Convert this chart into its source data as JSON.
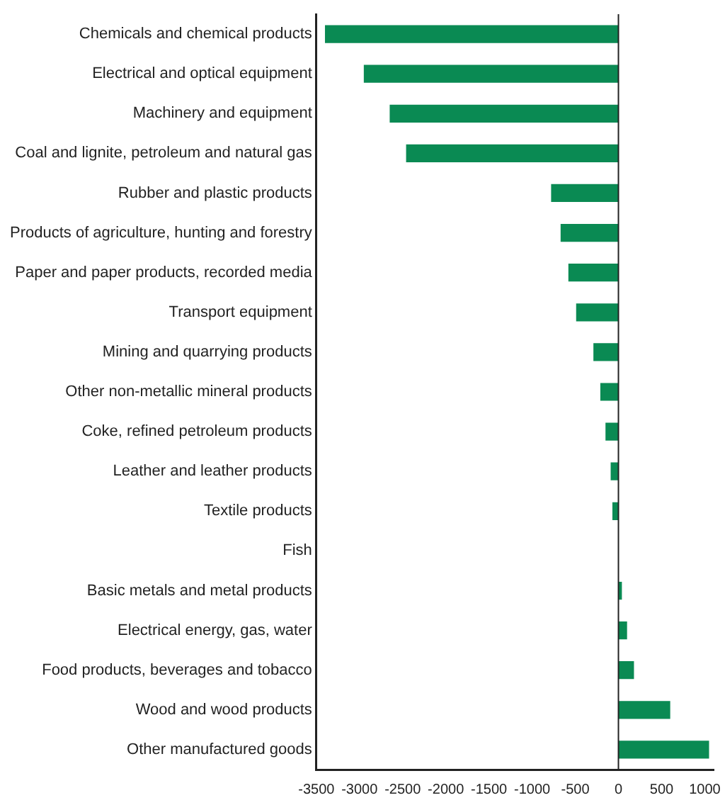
{
  "chart_data": {
    "type": "bar",
    "orientation": "horizontal",
    "categories": [
      "Chemicals and chemical products",
      "Electrical and optical equipment",
      "Machinery and equipment",
      "Coal and lignite, petroleum and natural gas",
      "Rubber and plastic products",
      "Products of agriculture, hunting and forestry",
      "Paper and paper products, recorded media",
      "Transport equipment",
      "Mining and quarrying products",
      "Other non-metallic mineral products",
      "Coke, refined petroleum products",
      "Leather and leather products",
      "Textile products",
      "Fish",
      "Basic metals and metal products",
      "Electrical energy, gas, water",
      "Food products, beverages and tobacco",
      "Wood and wood products",
      "Other manufactured goods"
    ],
    "values": [
      -3400,
      -2950,
      -2650,
      -2460,
      -780,
      -670,
      -580,
      -490,
      -290,
      -210,
      -150,
      -90,
      -70,
      0,
      40,
      100,
      180,
      600,
      1050
    ],
    "color": "#0a8a53",
    "xlim": [
      -3500,
      1100
    ],
    "xticks": [
      -3500,
      -3000,
      -2500,
      -2000,
      -1500,
      -1000,
      -500,
      0,
      500,
      1000
    ],
    "ref_lines": [
      {
        "axis": "x",
        "value": 0,
        "color": "#222222"
      }
    ],
    "grid": false,
    "legend": false
  }
}
